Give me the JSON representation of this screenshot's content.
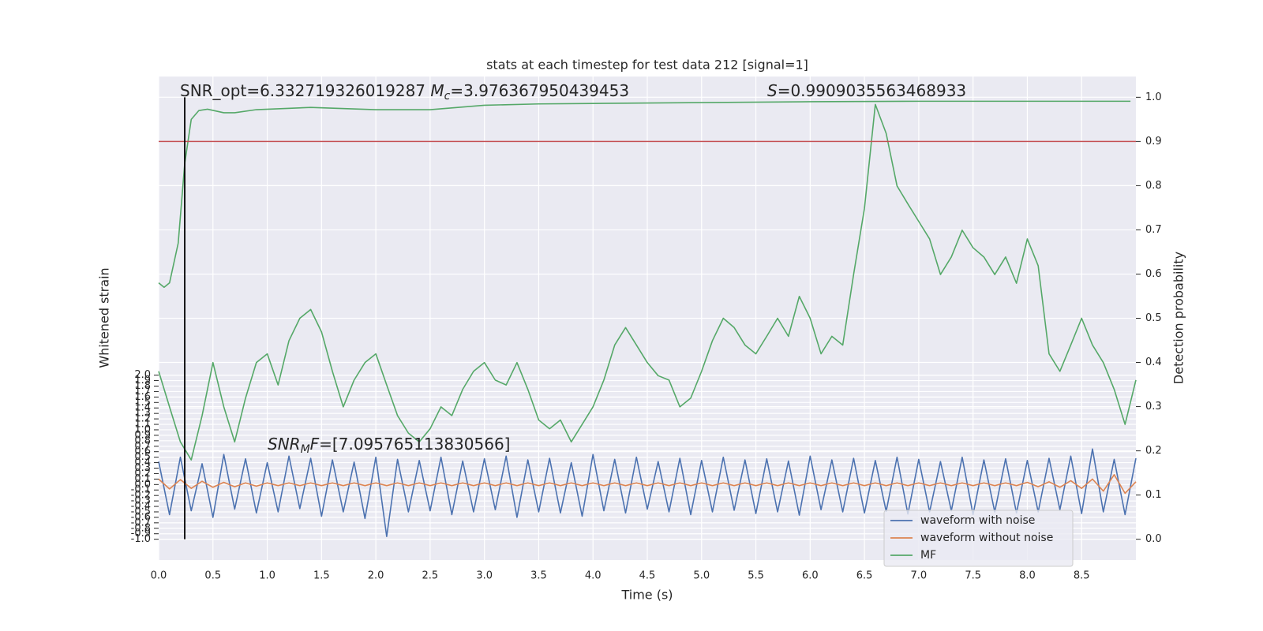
{
  "chart_data": {
    "type": "line",
    "title": "stats at each timestep for test data 212 [signal=1]",
    "xlabel": "Time (s)",
    "ylabel": "Whitened strain",
    "y2label": "Detection probability",
    "grid": true,
    "legend": "lower right",
    "x": [
      0,
      0.1,
      0.2,
      0.3,
      0.4,
      0.5,
      0.6,
      0.7,
      0.8,
      0.9,
      1,
      1.1,
      1.2,
      1.3,
      1.4,
      1.5,
      1.6,
      1.7,
      1.8,
      1.9,
      2,
      2.1,
      2.2,
      2.3,
      2.4,
      2.5,
      2.6,
      2.7,
      2.8,
      2.9,
      3,
      3.1,
      3.2,
      3.3,
      3.4,
      3.5,
      3.6,
      3.7,
      3.8,
      3.9,
      4,
      4.1,
      4.2,
      4.3,
      4.4,
      4.5,
      4.6,
      4.7,
      4.8,
      4.9,
      5,
      5.1,
      5.2,
      5.3,
      5.4,
      5.5,
      5.6,
      5.7,
      5.8,
      5.9,
      6,
      6.1,
      6.2,
      6.3,
      6.4,
      6.5,
      6.6,
      6.7,
      6.8,
      6.9,
      7,
      7.1,
      7.2,
      7.3,
      7.4,
      7.5,
      7.6,
      7.7,
      7.8,
      7.9,
      8,
      8.1,
      8.2,
      8.3,
      8.4,
      8.5,
      8.6,
      8.7,
      8.8,
      8.9,
      9
    ],
    "xlim": [
      0,
      9
    ],
    "ylim": [
      -1.38,
      7.46
    ],
    "y2lim": [
      -0.047,
      1.047
    ],
    "xticks": [
      {
        "value": 0,
        "label": "0.0"
      },
      {
        "value": 0.5,
        "label": "0.5"
      },
      {
        "value": 1,
        "label": "1.0"
      },
      {
        "value": 1.5,
        "label": "1.5"
      },
      {
        "value": 2,
        "label": "2.0"
      },
      {
        "value": 2.5,
        "label": "2.5"
      },
      {
        "value": 3,
        "label": "3.0"
      },
      {
        "value": 3.5,
        "label": "3.5"
      },
      {
        "value": 4,
        "label": "4.0"
      },
      {
        "value": 4.5,
        "label": "4.5"
      },
      {
        "value": 5,
        "label": "5.0"
      },
      {
        "value": 5.5,
        "label": "5.5"
      },
      {
        "value": 6,
        "label": "6.0"
      },
      {
        "value": 6.5,
        "label": "6.5"
      },
      {
        "value": 7,
        "label": "7.0"
      },
      {
        "value": 7.5,
        "label": "7.5"
      },
      {
        "value": 8,
        "label": "8.0"
      },
      {
        "value": 8.5,
        "label": "8.5"
      }
    ],
    "yticks": [
      {
        "value": -1,
        "label": "-1.0"
      },
      {
        "value": -0.9,
        "label": "-0.9"
      },
      {
        "value": -0.8,
        "label": "-0.8"
      },
      {
        "value": -0.7,
        "label": "-0.7"
      },
      {
        "value": -0.6,
        "label": "-0.6"
      },
      {
        "value": -0.5,
        "label": "-0.5"
      },
      {
        "value": -0.4,
        "label": "-0.4"
      },
      {
        "value": -0.3,
        "label": "-0.3"
      },
      {
        "value": -0.2,
        "label": "-0.2"
      },
      {
        "value": -0.1,
        "label": "-0.1"
      },
      {
        "value": 0,
        "label": "0.0"
      },
      {
        "value": 0.1,
        "label": "0.1"
      },
      {
        "value": 0.2,
        "label": "0.2"
      },
      {
        "value": 0.3,
        "label": "0.3"
      },
      {
        "value": 0.4,
        "label": "0.4"
      },
      {
        "value": 0.5,
        "label": "0.5"
      },
      {
        "value": 0.6,
        "label": "0.6"
      },
      {
        "value": 0.7,
        "label": "0.7"
      },
      {
        "value": 0.8,
        "label": "0.8"
      },
      {
        "value": 0.9,
        "label": "0.9"
      },
      {
        "value": 1,
        "label": "1.0"
      },
      {
        "value": 1.1,
        "label": "1.1"
      },
      {
        "value": 1.2,
        "label": "1.2"
      },
      {
        "value": 1.3,
        "label": "1.3"
      },
      {
        "value": 1.4,
        "label": "1.4"
      },
      {
        "value": 1.5,
        "label": "1.5"
      },
      {
        "value": 1.6,
        "label": "1.6"
      },
      {
        "value": 1.7,
        "label": "1.7"
      },
      {
        "value": 1.8,
        "label": "1.8"
      },
      {
        "value": 1.9,
        "label": "1.9"
      },
      {
        "value": 2,
        "label": "2.0"
      }
    ],
    "y2ticks": [
      {
        "value": 0,
        "label": "0.0"
      },
      {
        "value": 0.1,
        "label": "0.1"
      },
      {
        "value": 0.2,
        "label": "0.2"
      },
      {
        "value": 0.3,
        "label": "0.3"
      },
      {
        "value": 0.4,
        "label": "0.4"
      },
      {
        "value": 0.5,
        "label": "0.5"
      },
      {
        "value": 0.6,
        "label": "0.6"
      },
      {
        "value": 0.7,
        "label": "0.7"
      },
      {
        "value": 0.8,
        "label": "0.8"
      },
      {
        "value": 0.9,
        "label": "0.9"
      },
      {
        "value": 1,
        "label": "1.0"
      }
    ],
    "series": [
      {
        "name": "waveform with noise",
        "color": "#4c72b0",
        "values": [
          0.42,
          -0.55,
          0.5,
          -0.48,
          0.38,
          -0.6,
          0.55,
          -0.45,
          0.47,
          -0.52,
          0.4,
          -0.5,
          0.52,
          -0.44,
          0.48,
          -0.58,
          0.45,
          -0.5,
          0.41,
          -0.62,
          0.5,
          -0.95,
          0.46,
          -0.5,
          0.44,
          -0.48,
          0.5,
          -0.55,
          0.43,
          -0.5,
          0.47,
          -0.46,
          0.52,
          -0.6,
          0.45,
          -0.5,
          0.48,
          -0.52,
          0.4,
          -0.58,
          0.55,
          -0.48,
          0.46,
          -0.52,
          0.5,
          -0.45,
          0.42,
          -0.5,
          0.48,
          -0.55,
          0.44,
          -0.5,
          0.5,
          -0.47,
          0.45,
          -0.53,
          0.47,
          -0.5,
          0.43,
          -0.56,
          0.52,
          -0.46,
          0.45,
          -0.5,
          0.48,
          -0.52,
          0.44,
          -0.49,
          0.5,
          -0.54,
          0.46,
          -0.5,
          0.42,
          -0.48,
          0.5,
          -0.55,
          0.45,
          -0.5,
          0.47,
          -0.52,
          0.44,
          -0.5,
          0.48,
          -0.46,
          0.52,
          -0.53,
          0.65,
          -0.5,
          0.46,
          -0.55,
          0.48
        ]
      },
      {
        "name": "waveform without noise",
        "color": "#dd8452",
        "values": [
          0.1,
          -0.08,
          0.09,
          -0.07,
          0.06,
          -0.05,
          0.04,
          -0.04,
          0.03,
          -0.03,
          0.03,
          -0.02,
          0.03,
          -0.02,
          0.03,
          -0.02,
          0.03,
          -0.02,
          0.03,
          -0.02,
          0.03,
          -0.02,
          0.03,
          -0.02,
          0.03,
          -0.02,
          0.03,
          -0.02,
          0.03,
          -0.02,
          0.03,
          -0.02,
          0.03,
          -0.02,
          0.03,
          -0.02,
          0.03,
          -0.02,
          0.03,
          -0.02,
          0.03,
          -0.02,
          0.03,
          -0.02,
          0.03,
          -0.02,
          0.03,
          -0.02,
          0.03,
          -0.02,
          0.03,
          -0.02,
          0.03,
          -0.02,
          0.03,
          -0.02,
          0.03,
          -0.02,
          0.03,
          -0.02,
          0.03,
          -0.02,
          0.03,
          -0.02,
          0.03,
          -0.02,
          0.03,
          -0.02,
          0.03,
          -0.02,
          0.03,
          -0.02,
          0.03,
          -0.02,
          0.03,
          -0.02,
          0.03,
          -0.02,
          0.03,
          -0.02,
          0.04,
          -0.04,
          0.05,
          -0.05,
          0.07,
          -0.07,
          0.1,
          -0.12,
          0.18,
          -0.16,
          0.05
        ]
      },
      {
        "name": "MF",
        "color": "#55a868",
        "values": [
          2.07,
          1.42,
          0.78,
          0.45,
          1.26,
          2.23,
          1.42,
          0.78,
          1.58,
          2.23,
          2.39,
          1.82,
          2.63,
          3.04,
          3.2,
          2.79,
          2.07,
          1.42,
          1.91,
          2.23,
          2.39,
          1.82,
          1.26,
          0.94,
          0.78,
          1.02,
          1.42,
          1.26,
          1.74,
          2.07,
          2.23,
          1.91,
          1.82,
          2.23,
          1.74,
          1.18,
          1.02,
          1.18,
          0.78,
          1.1,
          1.42,
          1.91,
          2.55,
          2.87,
          2.55,
          2.23,
          1.99,
          1.91,
          1.42,
          1.58,
          2.07,
          2.63,
          3.04,
          2.87,
          2.55,
          2.39,
          2.71,
          3.04,
          2.71,
          3.44,
          3.04,
          2.39,
          2.71,
          2.55,
          3.84,
          5.05,
          6.95,
          6.42,
          5.46,
          5.13,
          4.81,
          4.49,
          3.84,
          4.16,
          4.65,
          4.33,
          4.16,
          3.84,
          4.16,
          3.68,
          4.49,
          4,
          2.39,
          2.07,
          2.55,
          3.04,
          2.55,
          2.23,
          1.74,
          1.1,
          1.91
        ]
      },
      {
        "color": "#55a868",
        "axis": "y2",
        "x": [
          0,
          0.05,
          0.1,
          0.18,
          0.24,
          0.3,
          0.37,
          0.45,
          0.6,
          0.7,
          0.9,
          1.4,
          2,
          2.5,
          3,
          3.5,
          4,
          5,
          6,
          7,
          8,
          8.95
        ],
        "values": [
          0.58,
          0.57,
          0.58,
          0.67,
          0.85,
          0.95,
          0.97,
          0.973,
          0.965,
          0.965,
          0.972,
          0.977,
          0.972,
          0.972,
          0.982,
          0.985,
          0.986,
          0.988,
          0.99,
          0.991,
          0.991,
          0.991
        ]
      }
    ],
    "hlines": [
      {
        "y": 0.9,
        "axis": "y2",
        "color": "#c44e52"
      }
    ],
    "vlines": [
      {
        "x": 0.24,
        "color": "#000000"
      }
    ],
    "annotations": [
      [
        {
          "text": "SNR_opt=6.332719326019287 ",
          "style": "normal"
        },
        {
          "text": "M",
          "style": "italic"
        },
        {
          "text": "c",
          "style": "sub"
        },
        {
          "text": "=3.976367950439453",
          "style": "normal"
        }
      ],
      [
        {
          "text": "S",
          "style": "italic"
        },
        {
          "text": "=0.9909035563468933",
          "style": "normal"
        }
      ],
      [
        {
          "text": "SNR",
          "style": "italic"
        },
        {
          "text": "M",
          "style": "sub"
        },
        {
          "text": "F",
          "style": "italic"
        },
        {
          "text": "=[7.095765113830566]",
          "style": "normal"
        }
      ]
    ]
  }
}
